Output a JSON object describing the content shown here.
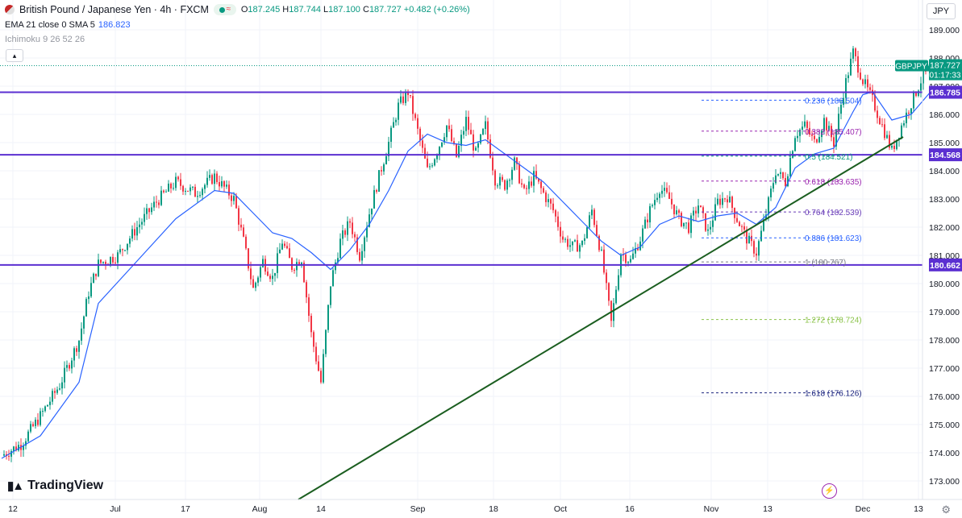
{
  "header": {
    "title": "British Pound / Japanese Yen · 4h · FXCM",
    "open_label": "O",
    "open": "187.245",
    "high_label": "H",
    "high": "187.744",
    "low_label": "L",
    "low": "187.100",
    "close_label": "C",
    "close": "187.727",
    "change": "+0.482 (+0.26%)"
  },
  "indicators": {
    "ema_sma_label": "EMA 21 close 0 SMA 5",
    "ema_sma_value": "186.823",
    "ichimoku_label": "Ichimoku 9 26 52 26"
  },
  "currency": "JPY",
  "branding": "TradingView",
  "colors": {
    "up": "#089981",
    "down": "#f23645",
    "ema": "#2962ff",
    "hline": "#5b2fd1",
    "trendline": "#1b5e20"
  },
  "chart_data": {
    "type": "candlestick",
    "y_axis": {
      "ticks": [
        "173.000",
        "174.000",
        "175.000",
        "176.000",
        "177.000",
        "178.000",
        "179.000",
        "180.000",
        "181.000",
        "182.000",
        "183.000",
        "184.000",
        "185.000",
        "186.000",
        "187.000",
        "188.000",
        "189.000"
      ],
      "range": [
        172.7,
        189.7
      ]
    },
    "x_axis": {
      "ticks": [
        "12",
        "Jul",
        "17",
        "Aug",
        "14",
        "Sep",
        "18",
        "Oct",
        "16",
        "Nov",
        "13",
        "Dec",
        "13"
      ]
    },
    "price_labels": [
      {
        "symbol": "GBPJPY",
        "price": "187.727",
        "countdown": "01:17:33"
      }
    ],
    "horizontal_levels": [
      "186.785",
      "184.568",
      "180.662"
    ],
    "fibonacci": [
      {
        "ratio": "0.236",
        "price": "186.504"
      },
      {
        "ratio": "0.382",
        "price": "185.407"
      },
      {
        "ratio": "0.5",
        "price": "184.521"
      },
      {
        "ratio": "0.618",
        "price": "183.635"
      },
      {
        "ratio": "0.764",
        "price": "182.539"
      },
      {
        "ratio": "0.886",
        "price": "181.623"
      },
      {
        "ratio": "1",
        "price": "180.767"
      },
      {
        "ratio": "1.272",
        "price": "178.724"
      },
      {
        "ratio": "1.618",
        "price": "176.126"
      }
    ],
    "price_path": [
      [
        0,
        173.9
      ],
      [
        2,
        174.3
      ],
      [
        4,
        175.3
      ],
      [
        6,
        176.4
      ],
      [
        8,
        178.0
      ],
      [
        9,
        179.7
      ],
      [
        10,
        180.7
      ],
      [
        12,
        181.0
      ],
      [
        14,
        182.0
      ],
      [
        16,
        182.9
      ],
      [
        18,
        183.6
      ],
      [
        20,
        183.2
      ],
      [
        22,
        183.8
      ],
      [
        24,
        183.0
      ],
      [
        25,
        181.5
      ],
      [
        26,
        179.8
      ],
      [
        27,
        180.8
      ],
      [
        28,
        180.2
      ],
      [
        29,
        181.5
      ],
      [
        30,
        180.6
      ],
      [
        31,
        180.9
      ],
      [
        32,
        178.2
      ],
      [
        33,
        176.5
      ],
      [
        34,
        180.0
      ],
      [
        35,
        181.5
      ],
      [
        36,
        182.2
      ],
      [
        37,
        181.0
      ],
      [
        38,
        182.5
      ],
      [
        39,
        183.8
      ],
      [
        40,
        185.0
      ],
      [
        41,
        186.3
      ],
      [
        42,
        186.8
      ],
      [
        43,
        185.4
      ],
      [
        44,
        184.0
      ],
      [
        45,
        184.7
      ],
      [
        46,
        185.6
      ],
      [
        47,
        184.5
      ],
      [
        48,
        185.8
      ],
      [
        49,
        184.6
      ],
      [
        50,
        185.6
      ],
      [
        51,
        183.7
      ],
      [
        52,
        183.5
      ],
      [
        53,
        184.3
      ],
      [
        54,
        183.2
      ],
      [
        55,
        183.8
      ],
      [
        56,
        183.2
      ],
      [
        57,
        182.6
      ],
      [
        58,
        181.6
      ],
      [
        59,
        181.3
      ],
      [
        60,
        181.4
      ],
      [
        61,
        182.6
      ],
      [
        62,
        181.0
      ],
      [
        63,
        178.6
      ],
      [
        64,
        181.1
      ],
      [
        65,
        180.8
      ],
      [
        66,
        181.6
      ],
      [
        67,
        182.6
      ],
      [
        68,
        183.4
      ],
      [
        69,
        183.0
      ],
      [
        70,
        182.3
      ],
      [
        71,
        182.0
      ],
      [
        72,
        182.8
      ],
      [
        73,
        181.8
      ],
      [
        74,
        182.9
      ],
      [
        75,
        183.1
      ],
      [
        76,
        182.3
      ],
      [
        77,
        181.6
      ],
      [
        78,
        181.1
      ],
      [
        79,
        182.5
      ],
      [
        80,
        184.0
      ],
      [
        81,
        183.6
      ],
      [
        82,
        185.3
      ],
      [
        83,
        185.6
      ],
      [
        84,
        185.0
      ],
      [
        85,
        185.8
      ],
      [
        86,
        185.0
      ],
      [
        87,
        186.8
      ],
      [
        88,
        188.2
      ],
      [
        89,
        187.2
      ],
      [
        90,
        186.5
      ],
      [
        91,
        185.6
      ],
      [
        92,
        184.7
      ],
      [
        93,
        185.6
      ],
      [
        94,
        186.4
      ],
      [
        95,
        187.2
      ],
      [
        96,
        187.7
      ]
    ],
    "ema_path": [
      [
        0,
        173.8
      ],
      [
        4,
        174.6
      ],
      [
        8,
        176.5
      ],
      [
        10,
        179.3
      ],
      [
        14,
        180.8
      ],
      [
        18,
        182.3
      ],
      [
        22,
        183.3
      ],
      [
        24,
        183.2
      ],
      [
        26,
        182.5
      ],
      [
        28,
        181.8
      ],
      [
        30,
        181.6
      ],
      [
        32,
        181.1
      ],
      [
        34,
        180.5
      ],
      [
        36,
        181.2
      ],
      [
        38,
        182.1
      ],
      [
        40,
        183.3
      ],
      [
        42,
        184.7
      ],
      [
        44,
        185.3
      ],
      [
        46,
        185.0
      ],
      [
        48,
        184.9
      ],
      [
        50,
        185.1
      ],
      [
        52,
        184.6
      ],
      [
        54,
        184.1
      ],
      [
        56,
        183.6
      ],
      [
        58,
        182.9
      ],
      [
        60,
        182.2
      ],
      [
        62,
        181.5
      ],
      [
        64,
        181.0
      ],
      [
        66,
        181.3
      ],
      [
        68,
        182.1
      ],
      [
        70,
        182.4
      ],
      [
        72,
        182.2
      ],
      [
        74,
        182.4
      ],
      [
        76,
        182.5
      ],
      [
        78,
        182.1
      ],
      [
        80,
        182.7
      ],
      [
        82,
        184.1
      ],
      [
        84,
        184.6
      ],
      [
        86,
        184.8
      ],
      [
        88,
        186.1
      ],
      [
        89,
        186.7
      ],
      [
        90,
        186.8
      ],
      [
        92,
        185.8
      ],
      [
        94,
        186.0
      ],
      [
        96,
        186.8
      ]
    ]
  }
}
